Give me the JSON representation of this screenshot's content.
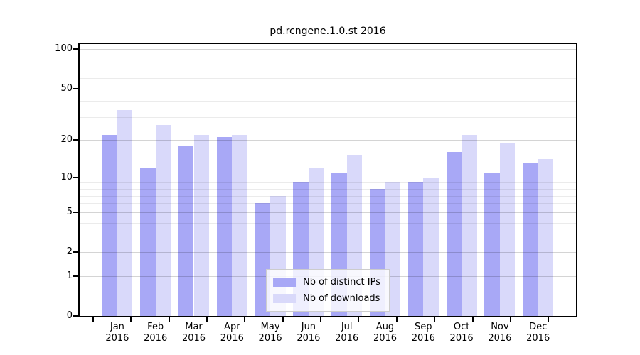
{
  "chart_data": {
    "type": "bar",
    "title": "pd.rcngene.1.0.st 2016",
    "categories": [
      "Jan",
      "Feb",
      "Mar",
      "Apr",
      "May",
      "Jun",
      "Jul",
      "Aug",
      "Sep",
      "Oct",
      "Nov",
      "Dec"
    ],
    "category_year": "2016",
    "series": [
      {
        "name": "Nb of distinct IPs",
        "color": "#a8a8f6",
        "values": [
          22,
          12,
          18,
          21,
          6,
          9,
          11,
          8,
          9,
          16,
          11,
          13
        ]
      },
      {
        "name": "Nb of downloads",
        "color": "#d9d9fa",
        "values": [
          34,
          26,
          22,
          22,
          7,
          12,
          15,
          9,
          10,
          22,
          19,
          14
        ]
      }
    ],
    "yscale": "log1p",
    "ylim": [
      0,
      100
    ],
    "y_major_ticks": [
      0,
      1,
      2,
      5,
      10,
      20,
      50,
      100
    ],
    "y_minor_gridlines": [
      3,
      4,
      6,
      7,
      8,
      9,
      30,
      40,
      60,
      70,
      80,
      90
    ],
    "grid": true,
    "legend_position": "lower center"
  }
}
